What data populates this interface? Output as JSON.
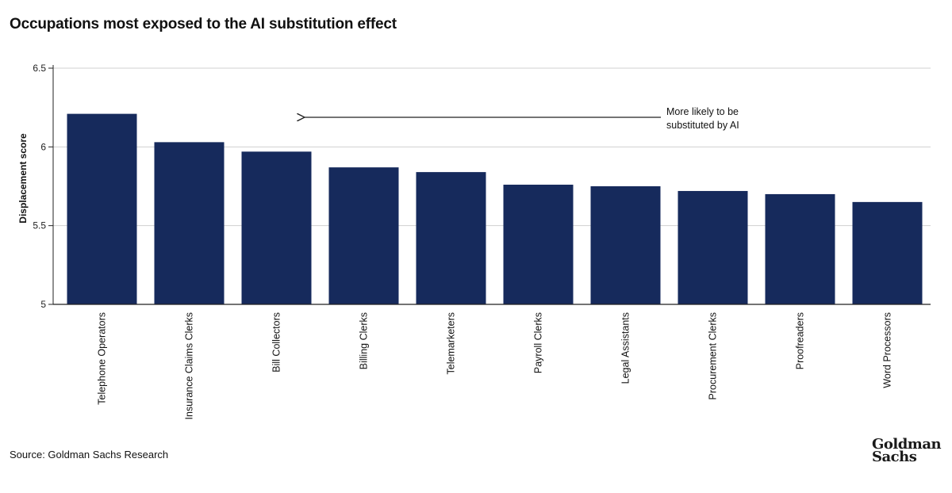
{
  "title": "Occupations most exposed to the AI substitution effect",
  "source": "Source: Goldman Sachs Research",
  "logo": {
    "line1": "Goldman",
    "line2": "Sachs"
  },
  "colors": {
    "bar": "#162a5c",
    "grid": "#d0d0d0",
    "axis": "#222222"
  },
  "chart_data": {
    "type": "bar",
    "title": "Occupations most exposed to the AI substitution effect",
    "xlabel": "",
    "ylabel": "Displacement score",
    "ylim": [
      5,
      6.5
    ],
    "yticks": [
      5,
      5.5,
      6,
      6.5
    ],
    "ytick_labels": [
      "5",
      "5.5",
      "6",
      "6.5"
    ],
    "grid": true,
    "legend": "none",
    "categories": [
      "Telephone Operators",
      "Insurance Claims Clerks",
      "Bill Collectors",
      "Billing Clerks",
      "Telemarketers",
      "Payroll Clerks",
      "Legal Assistants",
      "Procurement Clerks",
      "Proofreaders",
      "Word Processors"
    ],
    "values": [
      6.21,
      6.03,
      5.97,
      5.87,
      5.84,
      5.76,
      5.75,
      5.72,
      5.7,
      5.65
    ],
    "annotation": {
      "line1": "More likely to be",
      "line2": "substituted by AI",
      "arrow_direction": "left"
    }
  }
}
